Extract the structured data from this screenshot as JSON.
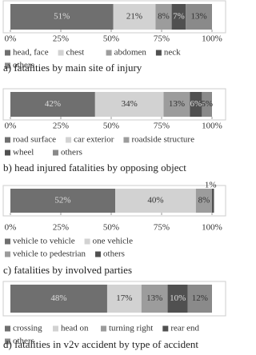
{
  "chart_data": [
    {
      "type": "bar",
      "title": "a) fatalities by main site of injury",
      "xlim": [
        0,
        100
      ],
      "xticks": [
        {
          "value": 0,
          "label": "0%"
        },
        {
          "value": 25,
          "label": "25%"
        },
        {
          "value": 50,
          "label": "50%"
        },
        {
          "value": 75,
          "label": "75%"
        },
        {
          "value": 100,
          "label": "100%"
        }
      ],
      "series": [
        {
          "name": "head, face",
          "color": "#6f6f6f",
          "values": [
            51
          ],
          "value_labels": [
            "51%"
          ]
        },
        {
          "name": "chest",
          "color": "#d2d2d2",
          "values": [
            21
          ],
          "value_labels": [
            "21%"
          ]
        },
        {
          "name": "abdomen",
          "color": "#9c9c9c",
          "values": [
            8
          ],
          "value_labels": [
            "8%"
          ]
        },
        {
          "name": "neck",
          "color": "#505050",
          "values": [
            7
          ],
          "value_labels": [
            "7%"
          ]
        },
        {
          "name": "others",
          "color": "#8a8a8a",
          "values": [
            13
          ],
          "value_labels": [
            "13%"
          ]
        }
      ]
    },
    {
      "type": "bar",
      "title": "b) head injured fatalities by opposing object",
      "xlim": [
        0,
        100
      ],
      "xticks": [
        {
          "value": 0,
          "label": "0%"
        },
        {
          "value": 25,
          "label": "25%"
        },
        {
          "value": 50,
          "label": "50%"
        },
        {
          "value": 75,
          "label": "75%"
        },
        {
          "value": 100,
          "label": "100%"
        }
      ],
      "series": [
        {
          "name": "road surface",
          "color": "#6f6f6f",
          "values": [
            42
          ],
          "value_labels": [
            "42%"
          ]
        },
        {
          "name": "car exterior",
          "color": "#d2d2d2",
          "values": [
            34
          ],
          "value_labels": [
            "34%"
          ]
        },
        {
          "name": "roadside structure",
          "color": "#9c9c9c",
          "values": [
            13
          ],
          "value_labels": [
            "13%"
          ]
        },
        {
          "name": "wheel",
          "color": "#505050",
          "values": [
            6
          ],
          "value_labels": [
            "6%"
          ]
        },
        {
          "name": "others",
          "color": "#8a8a8a",
          "values": [
            5
          ],
          "value_labels": [
            "5%"
          ]
        }
      ]
    },
    {
      "type": "bar",
      "title": "c) fatalities by involved parties",
      "xlim": [
        0,
        100
      ],
      "xticks": [
        {
          "value": 0,
          "label": "0%"
        },
        {
          "value": 25,
          "label": "25%"
        },
        {
          "value": 50,
          "label": "50%"
        },
        {
          "value": 75,
          "label": "75%"
        },
        {
          "value": 100,
          "label": "100%"
        }
      ],
      "series": [
        {
          "name": "vehicle to vehicle",
          "color": "#6f6f6f",
          "values": [
            52
          ],
          "value_labels": [
            "52%"
          ]
        },
        {
          "name": "one vehicle",
          "color": "#d2d2d2",
          "values": [
            40
          ],
          "value_labels": [
            "40%"
          ]
        },
        {
          "name": "vehicle to pedestrian",
          "color": "#9c9c9c",
          "values": [
            8
          ],
          "value_labels": [
            "8%"
          ]
        },
        {
          "name": "others",
          "color": "#505050",
          "values": [
            1
          ],
          "value_labels": [
            "1%"
          ]
        }
      ]
    },
    {
      "type": "bar",
      "title": "d) fatalities in v2v accident by type of accident",
      "xlim": [
        0,
        100
      ],
      "series": [
        {
          "name": "crossing",
          "color": "#6f6f6f",
          "values": [
            48
          ],
          "value_labels": [
            "48%"
          ]
        },
        {
          "name": "head on",
          "color": "#d2d2d2",
          "values": [
            17
          ],
          "value_labels": [
            "17%"
          ]
        },
        {
          "name": "turning right",
          "color": "#9c9c9c",
          "values": [
            13
          ],
          "value_labels": [
            "13%"
          ]
        },
        {
          "name": "rear end",
          "color": "#505050",
          "values": [
            10
          ],
          "value_labels": [
            "10%"
          ]
        },
        {
          "name": "others",
          "color": "#8a8a8a",
          "values": [
            12
          ],
          "value_labels": [
            "12%"
          ]
        }
      ]
    }
  ]
}
